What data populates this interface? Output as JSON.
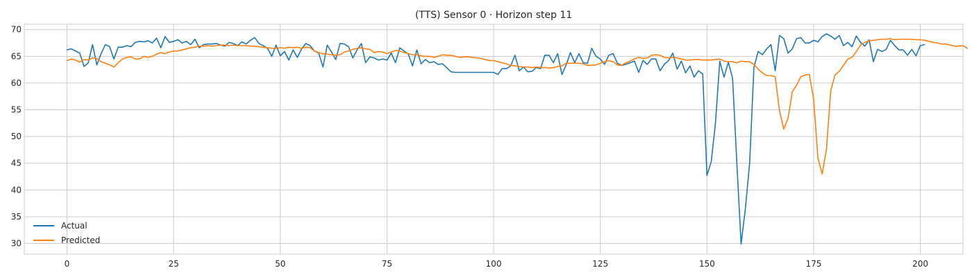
{
  "chart_data": {
    "type": "line",
    "title": "(TTS) Sensor 0 · Horizon step 11",
    "xlabel": "",
    "ylabel": "",
    "xlim": [
      -10,
      210
    ],
    "ylim": [
      28,
      71
    ],
    "xticks": [
      0,
      25,
      50,
      75,
      100,
      125,
      150,
      175,
      200
    ],
    "yticks": [
      30,
      35,
      40,
      45,
      50,
      55,
      60,
      65,
      70
    ],
    "xtick_labels": [
      "0",
      "25",
      "50",
      "75",
      "100",
      "125",
      "150",
      "175",
      "200"
    ],
    "ytick_labels": [
      "30",
      "35",
      "40",
      "45",
      "50",
      "55",
      "60",
      "65",
      "70"
    ],
    "grid": true,
    "legend_position": "lower-left",
    "series": [
      {
        "name": "Actual",
        "color": "#1f77b4",
        "values": [
          66.2,
          66.4,
          66.0,
          65.6,
          63.1,
          63.8,
          67.2,
          63.4,
          65.5,
          67.2,
          66.8,
          64.5,
          66.7,
          66.7,
          67.0,
          66.8,
          67.6,
          67.8,
          67.7,
          67.9,
          67.5,
          68.4,
          66.6,
          68.7,
          67.6,
          67.8,
          68.1,
          67.5,
          67.8,
          67.2,
          68.2,
          66.6,
          67.2,
          67.3,
          67.3,
          67.4,
          67.1,
          66.9,
          67.6,
          67.4,
          67.0,
          67.7,
          67.3,
          68.0,
          68.5,
          67.4,
          67.0,
          66.5,
          65.0,
          67.1,
          65.1,
          65.9,
          64.3,
          66.2,
          64.8,
          66.4,
          67.4,
          67.0,
          66.0,
          65.6,
          63.0,
          67.1,
          65.8,
          64.4,
          67.4,
          67.3,
          66.8,
          64.7,
          66.2,
          67.4,
          63.8,
          64.9,
          64.7,
          64.3,
          64.5,
          64.3,
          65.6,
          63.8,
          66.6,
          66.0,
          65.4,
          63.2,
          66.2,
          63.6,
          64.4,
          63.8,
          64.0,
          63.5,
          63.6,
          62.9,
          62.1,
          62.0,
          62.0,
          62.0,
          62.0,
          62.0,
          62.0,
          62.0,
          62.0,
          62.0,
          62.0,
          61.6,
          62.7,
          62.7,
          63.2,
          65.2,
          62.3,
          63.0,
          62.1,
          62.2,
          62.9,
          62.7,
          65.2,
          65.2,
          63.8,
          65.5,
          61.6,
          63.4,
          65.7,
          63.8,
          65.5,
          63.8,
          63.7,
          66.5,
          65.0,
          64.5,
          63.5,
          65.2,
          65.5,
          63.7,
          63.3,
          63.5,
          63.8,
          64.1,
          62.0,
          64.2,
          63.5,
          64.5,
          64.5,
          62.3,
          63.5,
          64.2,
          65.6,
          62.6,
          64.1,
          61.9,
          63.2,
          61.1,
          62.3,
          61.7,
          42.7,
          45.3,
          52.6,
          64.1,
          61.1,
          63.9,
          60.9,
          45.1,
          29.9,
          36.5,
          45.0,
          62.9,
          65.9,
          65.3,
          66.4,
          67.2,
          62.3,
          68.9,
          68.3,
          65.6,
          66.4,
          68.3,
          68.5,
          67.5,
          67.5,
          68.0,
          67.7,
          68.7,
          69.2,
          68.8,
          68.2,
          68.9,
          67.0,
          67.6,
          66.8,
          68.8,
          67.6,
          66.9,
          68.1,
          64.0,
          66.3,
          65.9,
          66.3,
          68.0,
          67.0,
          66.2,
          66.2,
          65.2,
          66.3,
          65.1,
          67.0,
          67.2
        ]
      },
      {
        "name": "Predicted",
        "color": "#ff7f0e",
        "values": [
          64.2,
          64.5,
          64.3,
          63.9,
          64.4,
          64.3,
          64.7,
          64.6,
          64.0,
          63.7,
          63.4,
          63.0,
          63.8,
          64.5,
          64.8,
          64.9,
          64.5,
          64.5,
          65.0,
          64.8,
          65.0,
          65.4,
          65.7,
          65.5,
          65.8,
          66.0,
          66.0,
          66.2,
          66.4,
          66.6,
          66.7,
          66.9,
          66.9,
          67.0,
          66.9,
          67.0,
          67.1,
          67.1,
          67.0,
          67.1,
          67.0,
          67.0,
          67.0,
          66.9,
          66.9,
          66.8,
          66.7,
          66.6,
          66.5,
          66.5,
          66.6,
          66.5,
          66.7,
          66.6,
          66.7,
          66.5,
          66.7,
          66.6,
          66.0,
          65.7,
          65.5,
          65.4,
          65.3,
          65.2,
          65.3,
          65.8,
          66.0,
          66.3,
          66.5,
          66.6,
          66.4,
          66.3,
          65.7,
          65.9,
          65.8,
          65.5,
          65.8,
          66.1,
          66.0,
          65.7,
          65.5,
          65.3,
          65.3,
          65.1,
          65.0,
          65.0,
          64.8,
          65.0,
          65.3,
          65.2,
          65.2,
          65.0,
          64.8,
          64.9,
          64.9,
          64.8,
          64.7,
          64.6,
          64.4,
          64.2,
          64.2,
          64.0,
          63.8,
          63.6,
          63.3,
          63.2,
          63.1,
          63.0,
          63.0,
          62.9,
          63.0,
          62.9,
          62.9,
          62.8,
          62.9,
          63.1,
          63.2,
          63.7,
          63.7,
          63.7,
          63.7,
          63.6,
          63.3,
          63.3,
          63.4,
          63.7,
          64.0,
          64.2,
          64.0,
          63.4,
          63.3,
          63.8,
          64.1,
          64.5,
          64.8,
          64.6,
          64.7,
          65.2,
          65.3,
          65.2,
          64.8,
          64.7,
          64.8,
          64.7,
          64.5,
          64.3,
          64.3,
          64.4,
          64.4,
          64.3,
          64.3,
          64.3,
          64.4,
          64.5,
          64.1,
          64.0,
          64.0,
          63.8,
          64.1,
          64.0,
          64.0,
          63.5,
          62.6,
          61.9,
          61.4,
          61.4,
          61.2,
          54.8,
          51.4,
          53.4,
          58.4,
          59.6,
          61.2,
          61.5,
          61.6,
          57.0,
          46.0,
          43.0,
          47.6,
          58.5,
          61.5,
          62.2,
          63.3,
          64.5,
          64.8,
          65.9,
          67.1,
          67.6,
          67.9,
          68.0,
          68.1,
          68.2,
          68.2,
          68.3,
          68.1,
          68.2,
          68.2,
          68.2,
          68.2,
          68.1,
          68.1,
          68.0,
          67.8,
          67.6,
          67.5,
          67.3,
          67.3,
          67.1,
          66.9,
          66.9,
          67.0,
          66.5
        ]
      }
    ]
  }
}
